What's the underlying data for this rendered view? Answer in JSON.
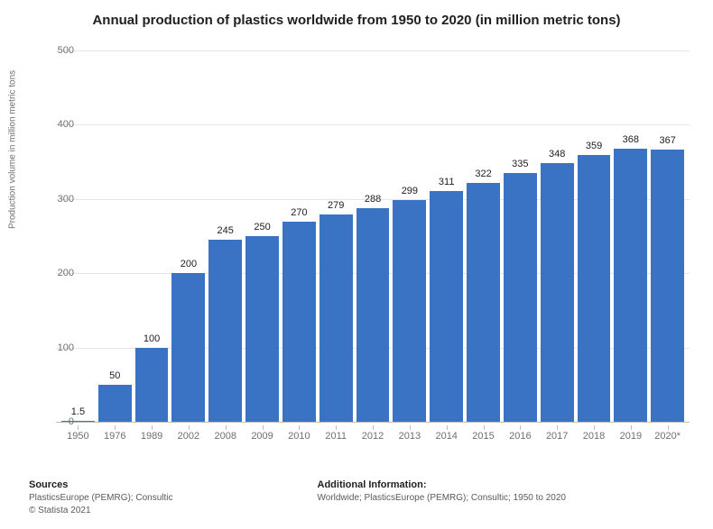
{
  "title": "Annual production of plastics worldwide from 1950 to 2020 (in million metric tons)",
  "title_fontsize": 15,
  "chart": {
    "type": "bar",
    "categories": [
      "1950",
      "1976",
      "1989",
      "2002",
      "2008",
      "2009",
      "2010",
      "2011",
      "2012",
      "2013",
      "2014",
      "2015",
      "2016",
      "2017",
      "2018",
      "2019",
      "2020*"
    ],
    "values": [
      1.5,
      50,
      100,
      200,
      245,
      250,
      270,
      279,
      288,
      299,
      311,
      322,
      335,
      348,
      359,
      368,
      367
    ],
    "value_labels": [
      "1.5",
      "50",
      "100",
      "200",
      "245",
      "250",
      "270",
      "279",
      "288",
      "299",
      "311",
      "322",
      "335",
      "348",
      "359",
      "368",
      "367"
    ],
    "bar_color": "#3a72c4",
    "ylabel": "Production volume in million metric tons",
    "ylabel_fontsize": 10,
    "ylim": [
      0,
      500
    ],
    "ytick_step": 100,
    "yticks": [
      0,
      100,
      200,
      300,
      400,
      500
    ],
    "grid_color": "#e6e6e6",
    "axis_color": "#bdbdbd",
    "background_color": "#ffffff",
    "value_label_fontsize": 11,
    "tick_label_fontsize": 11,
    "tick_label_color": "#6f6f6f"
  },
  "footer": {
    "sources_heading": "Sources",
    "sources_line1": "PlasticsEurope (PEMRG); Consultic",
    "sources_line2": "© Statista 2021",
    "additional_heading": "Additional Information:",
    "additional_line": "Worldwide; PlasticsEurope (PEMRG); Consultic; 1950 to 2020"
  }
}
